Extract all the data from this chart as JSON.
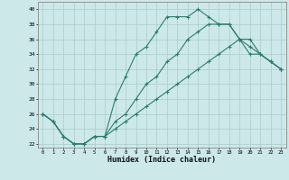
{
  "title": "",
  "xlabel": "Humidex (Indice chaleur)",
  "xlim": [
    -0.5,
    23.5
  ],
  "ylim": [
    21.5,
    41
  ],
  "yticks": [
    22,
    24,
    26,
    28,
    30,
    32,
    34,
    36,
    38,
    40
  ],
  "xticks": [
    0,
    1,
    2,
    3,
    4,
    5,
    6,
    7,
    8,
    9,
    10,
    11,
    12,
    13,
    14,
    15,
    16,
    17,
    18,
    19,
    20,
    21,
    22,
    23
  ],
  "bg_color": "#cce8e8",
  "line_color": "#2d7d6f",
  "grid_color": "#aacccc",
  "line1_x": [
    0,
    1,
    2,
    3,
    4,
    5,
    6,
    7,
    8,
    9,
    10,
    11,
    12,
    13,
    14,
    15,
    16,
    17,
    18,
    19,
    20,
    21,
    22,
    23
  ],
  "line1_y": [
    26,
    25,
    23,
    22,
    22,
    23,
    23,
    28,
    31,
    34,
    35,
    37,
    39,
    39,
    39,
    40,
    39,
    38,
    38,
    36,
    34,
    34,
    33,
    32
  ],
  "line2_x": [
    0,
    1,
    2,
    3,
    4,
    5,
    6,
    7,
    8,
    9,
    10,
    11,
    12,
    13,
    14,
    15,
    16,
    17,
    18,
    19,
    20,
    21,
    22,
    23
  ],
  "line2_y": [
    26,
    25,
    23,
    22,
    22,
    23,
    23,
    25,
    26,
    28,
    30,
    31,
    33,
    34,
    36,
    37,
    38,
    38,
    38,
    36,
    36,
    34,
    33,
    32
  ],
  "line3_x": [
    0,
    1,
    2,
    3,
    4,
    5,
    6,
    7,
    8,
    9,
    10,
    11,
    12,
    13,
    14,
    15,
    16,
    17,
    18,
    19,
    20,
    21,
    22,
    23
  ],
  "line3_y": [
    26,
    25,
    23,
    22,
    22,
    23,
    23,
    24,
    25,
    26,
    27,
    28,
    29,
    30,
    31,
    32,
    33,
    34,
    35,
    36,
    35,
    34,
    33,
    32
  ]
}
